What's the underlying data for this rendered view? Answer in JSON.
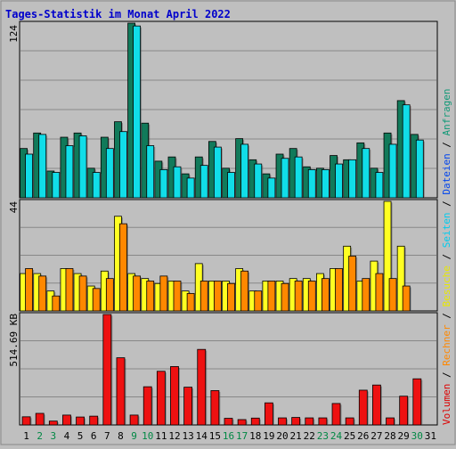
{
  "title": "Tages-Statistik im Monat April 2022",
  "y_max_labels": {
    "top": "124",
    "middle": "44",
    "bottom": "514.69 KB"
  },
  "legend_words": [
    {
      "text": "Volumen",
      "color": "#dd0000"
    },
    {
      "text": "Rechner",
      "color": "#ff8800"
    },
    {
      "text": "Besuche",
      "color": "#e8e800"
    },
    {
      "text": "Seiten",
      "color": "#00ccee"
    },
    {
      "text": "Dateien",
      "color": "#0044ee"
    },
    {
      "text": "Anfragen",
      "color": "#119977"
    }
  ],
  "legend_separator": " / ",
  "colors": {
    "background": "#bfbfbf",
    "panel": "#bfbfbf",
    "title": "#0000cc",
    "anfragen": "#117a5a",
    "seiten": "#11dde8",
    "besuche": "#ffff22",
    "rechner": "#ff8800",
    "volumen": "#ee1111",
    "day_weekday": "#000000",
    "day_weekend": "#008844",
    "grid": "#888888"
  },
  "chart_data": [
    {
      "type": "bar",
      "panel": "Anfragen / Seiten",
      "categories": [
        "1",
        "2",
        "3",
        "4",
        "5",
        "6",
        "7",
        "8",
        "9",
        "10",
        "11",
        "12",
        "13",
        "14",
        "15",
        "16",
        "17",
        "18",
        "19",
        "20",
        "21",
        "22",
        "23",
        "24",
        "25",
        "26",
        "27",
        "28",
        "29",
        "30",
        "31"
      ],
      "weekend_days": [
        "2",
        "3",
        "9",
        "10",
        "16",
        "17",
        "23",
        "24",
        "30"
      ],
      "ylim": [
        0,
        124
      ],
      "series": [
        {
          "name": "Anfragen",
          "values": [
            35,
            46,
            19,
            43,
            46,
            21,
            43,
            54,
            124,
            53,
            26,
            29,
            17,
            29,
            40,
            21,
            42,
            27,
            17,
            31,
            35,
            22,
            21,
            30,
            27,
            39,
            21,
            46,
            69,
            45,
            0
          ]
        },
        {
          "name": "Seiten",
          "values": [
            31,
            45,
            18,
            37,
            44,
            18,
            35,
            47,
            122,
            37,
            20,
            22,
            14,
            23,
            36,
            18,
            38,
            24,
            14,
            28,
            29,
            20,
            20,
            24,
            27,
            35,
            18,
            38,
            66,
            41,
            0
          ]
        }
      ]
    },
    {
      "type": "bar",
      "panel": "Besuche / Rechner",
      "categories": [
        "1",
        "2",
        "3",
        "4",
        "5",
        "6",
        "7",
        "8",
        "9",
        "10",
        "11",
        "12",
        "13",
        "14",
        "15",
        "16",
        "17",
        "18",
        "19",
        "20",
        "21",
        "22",
        "23",
        "24",
        "25",
        "26",
        "27",
        "28",
        "29",
        "30",
        "31"
      ],
      "weekend_days": [
        "2",
        "3",
        "9",
        "10",
        "16",
        "17",
        "23",
        "24",
        "30"
      ],
      "ylim": [
        0,
        44
      ],
      "series": [
        {
          "name": "Besuche",
          "values": [
            15,
            15,
            8,
            17,
            15,
            10,
            16,
            38,
            15,
            13,
            11,
            12,
            8,
            19,
            12,
            12,
            17,
            8,
            12,
            12,
            13,
            13,
            15,
            17,
            26,
            12,
            20,
            44,
            26,
            0,
            0
          ]
        },
        {
          "name": "Rechner",
          "values": [
            17,
            14,
            6,
            17,
            14,
            9,
            13,
            35,
            14,
            12,
            14,
            12,
            7,
            12,
            12,
            11,
            16,
            8,
            12,
            11,
            12,
            12,
            13,
            17,
            22,
            13,
            15,
            13,
            10,
            0,
            0
          ]
        }
      ]
    },
    {
      "type": "bar",
      "panel": "Volumen",
      "categories": [
        "1",
        "2",
        "3",
        "4",
        "5",
        "6",
        "7",
        "8",
        "9",
        "10",
        "11",
        "12",
        "13",
        "14",
        "15",
        "16",
        "17",
        "18",
        "19",
        "20",
        "21",
        "22",
        "23",
        "24",
        "25",
        "26",
        "27",
        "28",
        "29",
        "30",
        "31"
      ],
      "weekend_days": [
        "2",
        "3",
        "9",
        "10",
        "16",
        "17",
        "23",
        "24",
        "30"
      ],
      "ylim": [
        0,
        514.69
      ],
      "ylabel": "KB",
      "series": [
        {
          "name": "Volumen",
          "values": [
            38,
            54,
            18,
            46,
            37,
            41,
            514.69,
            313,
            46,
            178,
            250,
            272,
            176,
            352,
            160,
            31,
            25,
            32,
            103,
            33,
            35,
            33,
            33,
            100,
            33,
            162,
            186,
            33,
            134,
            215,
            0
          ]
        }
      ]
    }
  ]
}
